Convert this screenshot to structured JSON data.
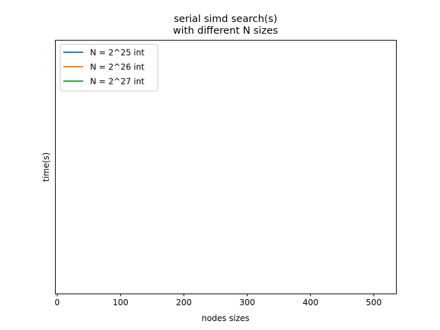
{
  "chart_data": {
    "type": "line",
    "title": "serial  simd search(s)\n with different N sizes",
    "title_lines": [
      "serial  simd search(s)",
      "with different N sizes"
    ],
    "xlabel": "nodes sizes",
    "ylabel": "time(s)",
    "xlim": [
      -3.5,
      535
    ],
    "xticks": [
      0,
      100,
      200,
      300,
      400,
      500
    ],
    "xtick_labels": [
      "0",
      "100",
      "200",
      "300",
      "400",
      "500"
    ],
    "yticks": [],
    "grid": false,
    "legend_position": "upper-left",
    "series": [
      {
        "name": "N = 2^25 int",
        "color": "#1f77b4",
        "x": [],
        "y": []
      },
      {
        "name": "N = 2^26 int",
        "color": "#ff7f0e",
        "x": [],
        "y": []
      },
      {
        "name": "N = 2^27 int",
        "color": "#2ca02c",
        "x": [],
        "y": []
      }
    ]
  }
}
